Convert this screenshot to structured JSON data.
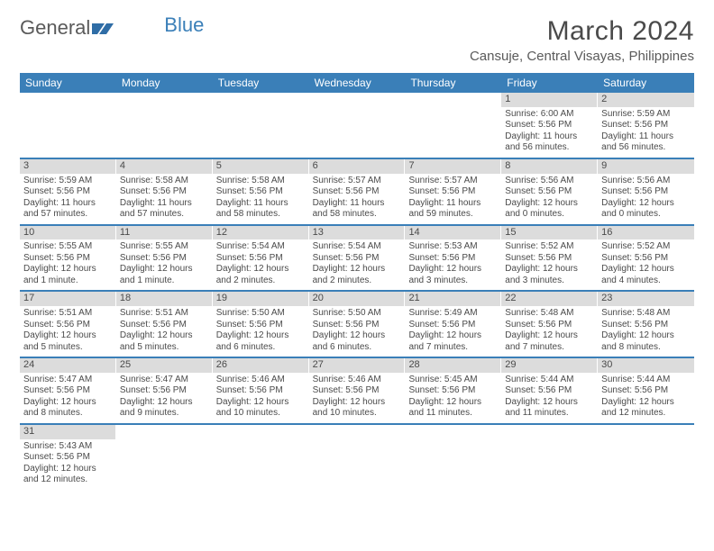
{
  "logo": {
    "text1": "General",
    "text2": "Blue"
  },
  "title": "March 2024",
  "location": "Cansuje, Central Visayas, Philippines",
  "colors": {
    "header_bg": "#3a7fb8",
    "daynum_bg": "#dcdcdc",
    "text": "#4a4a4a",
    "border": "#3a7fb8"
  },
  "dayHeaders": [
    "Sunday",
    "Monday",
    "Tuesday",
    "Wednesday",
    "Thursday",
    "Friday",
    "Saturday"
  ],
  "weeks": [
    [
      {
        "n": "",
        "sr": "",
        "ss": "",
        "dl": ""
      },
      {
        "n": "",
        "sr": "",
        "ss": "",
        "dl": ""
      },
      {
        "n": "",
        "sr": "",
        "ss": "",
        "dl": ""
      },
      {
        "n": "",
        "sr": "",
        "ss": "",
        "dl": ""
      },
      {
        "n": "",
        "sr": "",
        "ss": "",
        "dl": ""
      },
      {
        "n": "1",
        "sr": "Sunrise: 6:00 AM",
        "ss": "Sunset: 5:56 PM",
        "dl": "Daylight: 11 hours and 56 minutes."
      },
      {
        "n": "2",
        "sr": "Sunrise: 5:59 AM",
        "ss": "Sunset: 5:56 PM",
        "dl": "Daylight: 11 hours and 56 minutes."
      }
    ],
    [
      {
        "n": "3",
        "sr": "Sunrise: 5:59 AM",
        "ss": "Sunset: 5:56 PM",
        "dl": "Daylight: 11 hours and 57 minutes."
      },
      {
        "n": "4",
        "sr": "Sunrise: 5:58 AM",
        "ss": "Sunset: 5:56 PM",
        "dl": "Daylight: 11 hours and 57 minutes."
      },
      {
        "n": "5",
        "sr": "Sunrise: 5:58 AM",
        "ss": "Sunset: 5:56 PM",
        "dl": "Daylight: 11 hours and 58 minutes."
      },
      {
        "n": "6",
        "sr": "Sunrise: 5:57 AM",
        "ss": "Sunset: 5:56 PM",
        "dl": "Daylight: 11 hours and 58 minutes."
      },
      {
        "n": "7",
        "sr": "Sunrise: 5:57 AM",
        "ss": "Sunset: 5:56 PM",
        "dl": "Daylight: 11 hours and 59 minutes."
      },
      {
        "n": "8",
        "sr": "Sunrise: 5:56 AM",
        "ss": "Sunset: 5:56 PM",
        "dl": "Daylight: 12 hours and 0 minutes."
      },
      {
        "n": "9",
        "sr": "Sunrise: 5:56 AM",
        "ss": "Sunset: 5:56 PM",
        "dl": "Daylight: 12 hours and 0 minutes."
      }
    ],
    [
      {
        "n": "10",
        "sr": "Sunrise: 5:55 AM",
        "ss": "Sunset: 5:56 PM",
        "dl": "Daylight: 12 hours and 1 minute."
      },
      {
        "n": "11",
        "sr": "Sunrise: 5:55 AM",
        "ss": "Sunset: 5:56 PM",
        "dl": "Daylight: 12 hours and 1 minute."
      },
      {
        "n": "12",
        "sr": "Sunrise: 5:54 AM",
        "ss": "Sunset: 5:56 PM",
        "dl": "Daylight: 12 hours and 2 minutes."
      },
      {
        "n": "13",
        "sr": "Sunrise: 5:54 AM",
        "ss": "Sunset: 5:56 PM",
        "dl": "Daylight: 12 hours and 2 minutes."
      },
      {
        "n": "14",
        "sr": "Sunrise: 5:53 AM",
        "ss": "Sunset: 5:56 PM",
        "dl": "Daylight: 12 hours and 3 minutes."
      },
      {
        "n": "15",
        "sr": "Sunrise: 5:52 AM",
        "ss": "Sunset: 5:56 PM",
        "dl": "Daylight: 12 hours and 3 minutes."
      },
      {
        "n": "16",
        "sr": "Sunrise: 5:52 AM",
        "ss": "Sunset: 5:56 PM",
        "dl": "Daylight: 12 hours and 4 minutes."
      }
    ],
    [
      {
        "n": "17",
        "sr": "Sunrise: 5:51 AM",
        "ss": "Sunset: 5:56 PM",
        "dl": "Daylight: 12 hours and 5 minutes."
      },
      {
        "n": "18",
        "sr": "Sunrise: 5:51 AM",
        "ss": "Sunset: 5:56 PM",
        "dl": "Daylight: 12 hours and 5 minutes."
      },
      {
        "n": "19",
        "sr": "Sunrise: 5:50 AM",
        "ss": "Sunset: 5:56 PM",
        "dl": "Daylight: 12 hours and 6 minutes."
      },
      {
        "n": "20",
        "sr": "Sunrise: 5:50 AM",
        "ss": "Sunset: 5:56 PM",
        "dl": "Daylight: 12 hours and 6 minutes."
      },
      {
        "n": "21",
        "sr": "Sunrise: 5:49 AM",
        "ss": "Sunset: 5:56 PM",
        "dl": "Daylight: 12 hours and 7 minutes."
      },
      {
        "n": "22",
        "sr": "Sunrise: 5:48 AM",
        "ss": "Sunset: 5:56 PM",
        "dl": "Daylight: 12 hours and 7 minutes."
      },
      {
        "n": "23",
        "sr": "Sunrise: 5:48 AM",
        "ss": "Sunset: 5:56 PM",
        "dl": "Daylight: 12 hours and 8 minutes."
      }
    ],
    [
      {
        "n": "24",
        "sr": "Sunrise: 5:47 AM",
        "ss": "Sunset: 5:56 PM",
        "dl": "Daylight: 12 hours and 8 minutes."
      },
      {
        "n": "25",
        "sr": "Sunrise: 5:47 AM",
        "ss": "Sunset: 5:56 PM",
        "dl": "Daylight: 12 hours and 9 minutes."
      },
      {
        "n": "26",
        "sr": "Sunrise: 5:46 AM",
        "ss": "Sunset: 5:56 PM",
        "dl": "Daylight: 12 hours and 10 minutes."
      },
      {
        "n": "27",
        "sr": "Sunrise: 5:46 AM",
        "ss": "Sunset: 5:56 PM",
        "dl": "Daylight: 12 hours and 10 minutes."
      },
      {
        "n": "28",
        "sr": "Sunrise: 5:45 AM",
        "ss": "Sunset: 5:56 PM",
        "dl": "Daylight: 12 hours and 11 minutes."
      },
      {
        "n": "29",
        "sr": "Sunrise: 5:44 AM",
        "ss": "Sunset: 5:56 PM",
        "dl": "Daylight: 12 hours and 11 minutes."
      },
      {
        "n": "30",
        "sr": "Sunrise: 5:44 AM",
        "ss": "Sunset: 5:56 PM",
        "dl": "Daylight: 12 hours and 12 minutes."
      }
    ],
    [
      {
        "n": "31",
        "sr": "Sunrise: 5:43 AM",
        "ss": "Sunset: 5:56 PM",
        "dl": "Daylight: 12 hours and 12 minutes."
      },
      {
        "n": "",
        "sr": "",
        "ss": "",
        "dl": ""
      },
      {
        "n": "",
        "sr": "",
        "ss": "",
        "dl": ""
      },
      {
        "n": "",
        "sr": "",
        "ss": "",
        "dl": ""
      },
      {
        "n": "",
        "sr": "",
        "ss": "",
        "dl": ""
      },
      {
        "n": "",
        "sr": "",
        "ss": "",
        "dl": ""
      },
      {
        "n": "",
        "sr": "",
        "ss": "",
        "dl": ""
      }
    ]
  ]
}
